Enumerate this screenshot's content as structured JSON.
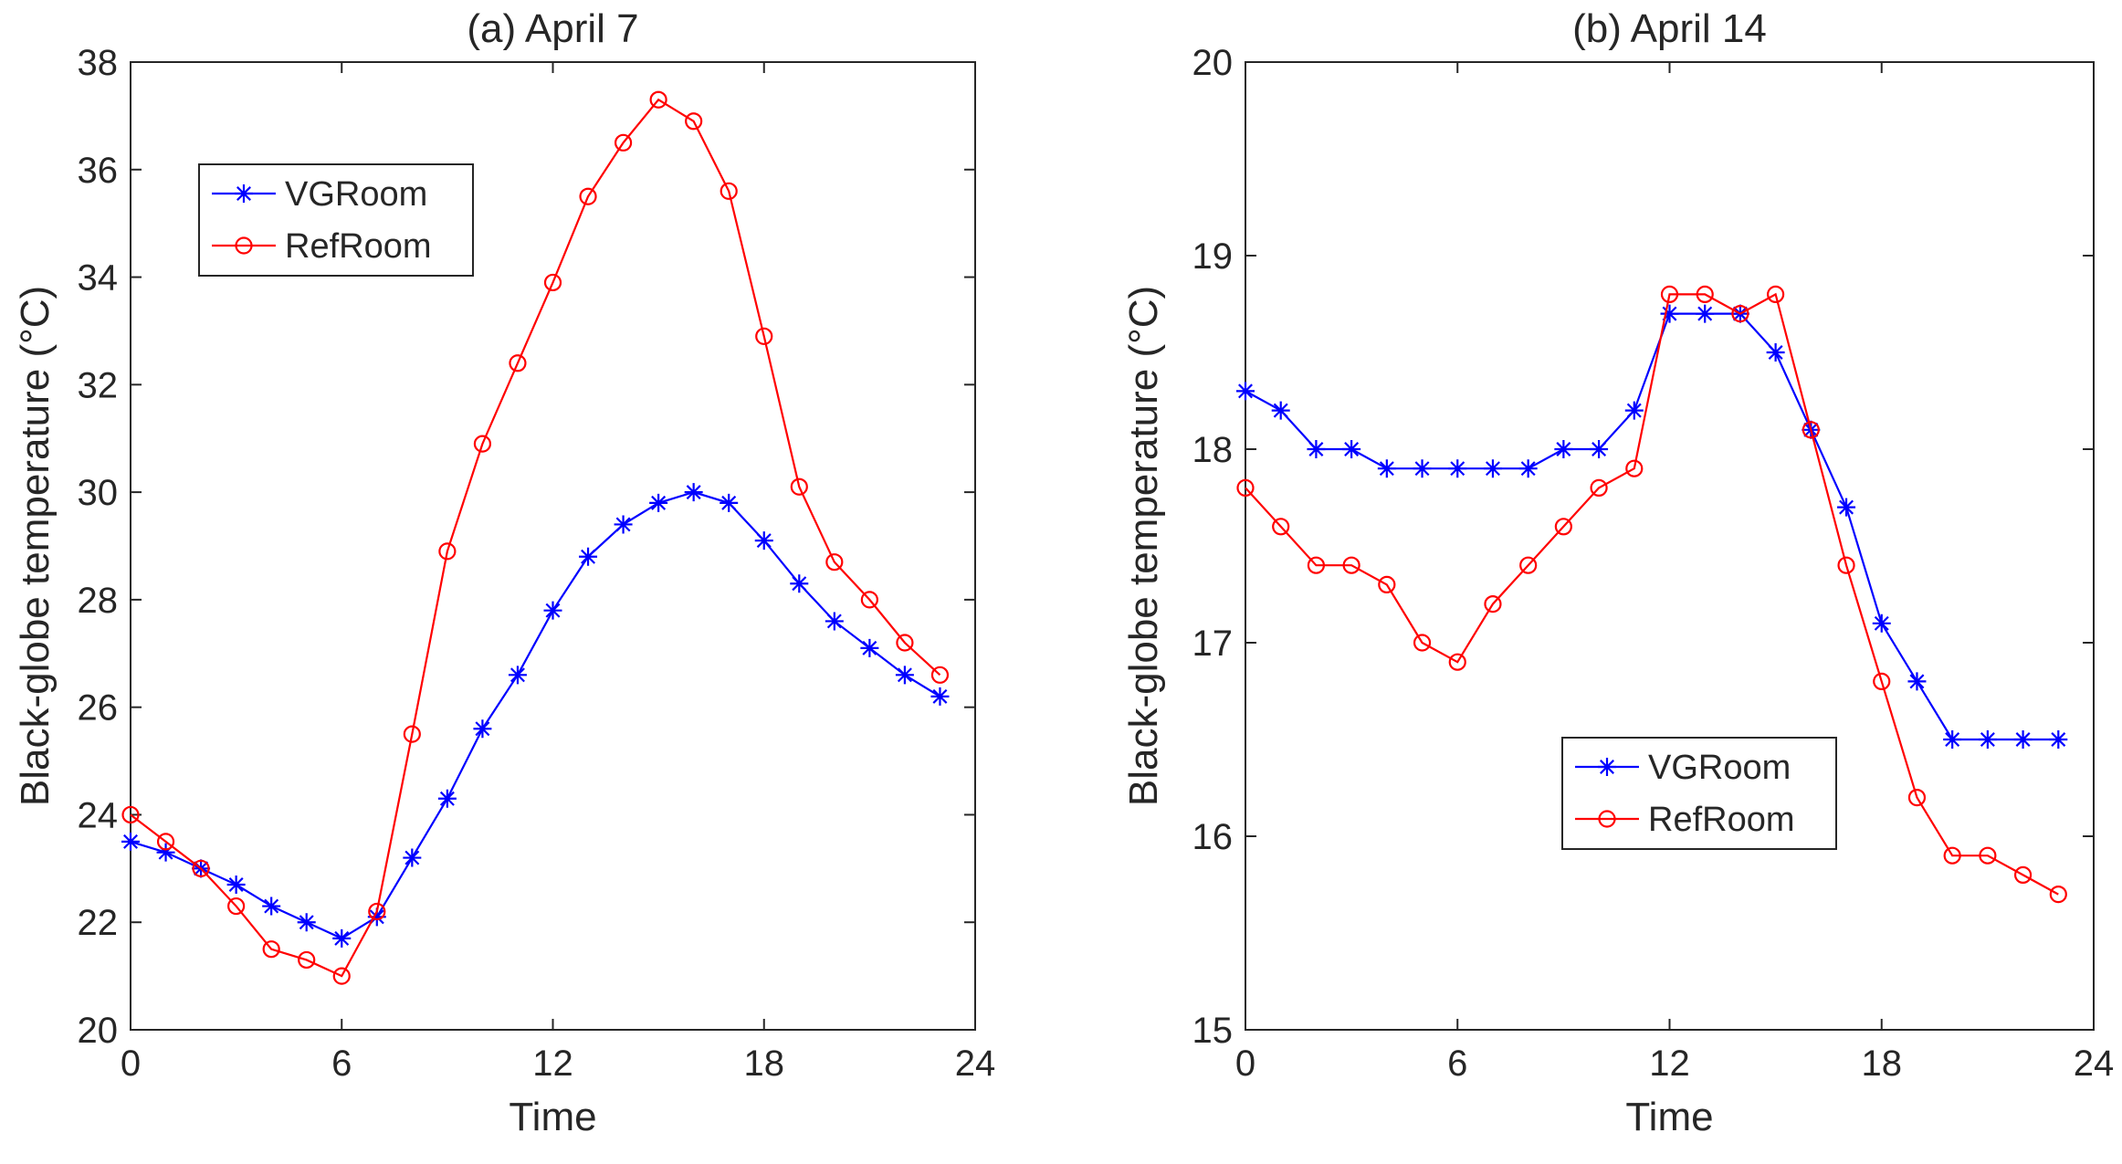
{
  "colors": {
    "vgroom": "#0000FF",
    "refroom": "#FF0000",
    "axis": "#262626",
    "background": "#FFFFFF"
  },
  "chart_data": [
    {
      "type": "line",
      "title": "(a) April 7",
      "xlabel": "Time",
      "ylabel": "Black-globe temperature (°C)",
      "xlim": [
        0,
        24
      ],
      "ylim": [
        20,
        38
      ],
      "xticks": [
        0,
        6,
        12,
        18,
        24
      ],
      "yticks": [
        20,
        22,
        24,
        26,
        28,
        30,
        32,
        34,
        36,
        38
      ],
      "legend_position": "upper-left",
      "x": [
        0,
        1,
        2,
        3,
        4,
        5,
        6,
        7,
        8,
        9,
        10,
        11,
        12,
        13,
        14,
        15,
        16,
        17,
        18,
        19,
        20,
        21,
        22,
        23
      ],
      "series": [
        {
          "name": "VGRoom",
          "marker": "asterisk",
          "color": "#0000FF",
          "values": [
            23.5,
            23.3,
            23.0,
            22.7,
            22.3,
            22.0,
            21.7,
            22.1,
            23.2,
            24.3,
            25.6,
            26.6,
            27.8,
            28.8,
            29.4,
            29.8,
            30.0,
            29.8,
            29.1,
            28.3,
            27.6,
            27.1,
            26.6,
            26.2
          ]
        },
        {
          "name": "RefRoom",
          "marker": "circle",
          "color": "#FF0000",
          "values": [
            24.0,
            23.5,
            23.0,
            22.3,
            21.5,
            21.3,
            21.0,
            22.2,
            25.5,
            28.9,
            30.9,
            32.4,
            33.9,
            35.5,
            36.5,
            37.3,
            36.9,
            35.6,
            32.9,
            30.1,
            28.7,
            28.0,
            27.2,
            26.6
          ]
        }
      ]
    },
    {
      "type": "line",
      "title": "(b) April 14",
      "xlabel": "Time",
      "ylabel": "Black-globe temperature (°C)",
      "xlim": [
        0,
        24
      ],
      "ylim": [
        15,
        20
      ],
      "xticks": [
        0,
        6,
        12,
        18,
        24
      ],
      "yticks": [
        15,
        16,
        17,
        18,
        19,
        20
      ],
      "legend_position": "lower-right",
      "x": [
        0,
        1,
        2,
        3,
        4,
        5,
        6,
        7,
        8,
        9,
        10,
        11,
        12,
        13,
        14,
        15,
        16,
        17,
        18,
        19,
        20,
        21,
        22,
        23
      ],
      "series": [
        {
          "name": "VGRoom",
          "marker": "asterisk",
          "color": "#0000FF",
          "values": [
            18.3,
            18.2,
            18.0,
            18.0,
            17.9,
            17.9,
            17.9,
            17.9,
            17.9,
            18.0,
            18.0,
            18.2,
            18.7,
            18.7,
            18.7,
            18.5,
            18.1,
            17.7,
            17.1,
            16.8,
            16.5,
            16.5,
            16.5,
            16.5
          ]
        },
        {
          "name": "RefRoom",
          "marker": "circle",
          "color": "#FF0000",
          "values": [
            17.8,
            17.6,
            17.4,
            17.4,
            17.3,
            17.0,
            16.9,
            17.2,
            17.4,
            17.6,
            17.8,
            17.9,
            18.8,
            18.8,
            18.7,
            18.8,
            18.1,
            17.4,
            16.8,
            16.2,
            15.9,
            15.9,
            15.8,
            15.7
          ]
        }
      ]
    }
  ]
}
